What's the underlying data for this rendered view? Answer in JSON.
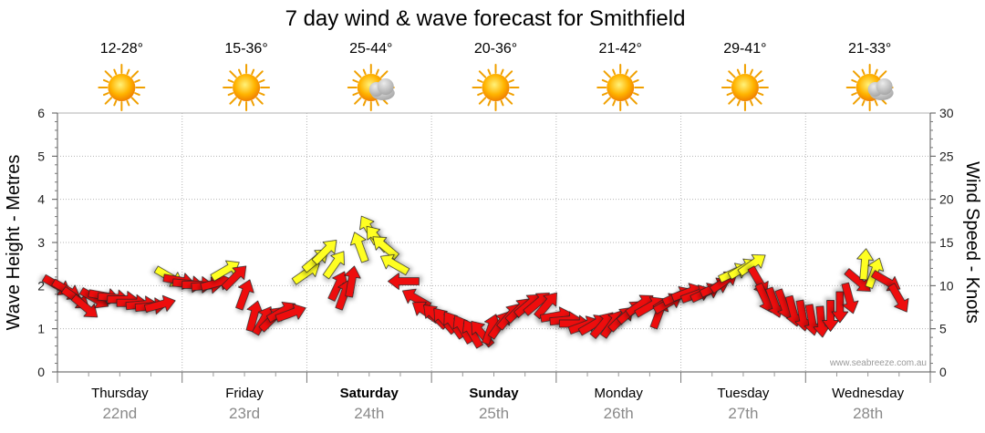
{
  "chart_data": {
    "type": "line",
    "title": "7 day wind & wave forecast for Smithfield",
    "ylabel_left": "Wave Height - Metres",
    "ylabel_right": "Wind Speed - Knots",
    "ylim_left": [
      0,
      6
    ],
    "ylim_right": [
      0,
      30
    ],
    "yticks_left": [
      "0",
      "1",
      "2",
      "3",
      "4",
      "5",
      "6"
    ],
    "yticks_right": [
      "0",
      "5",
      "10",
      "15",
      "20",
      "25",
      "30"
    ],
    "credit": "www.seabreeze.com.au",
    "days": [
      {
        "name": "Thursday",
        "date": "22nd",
        "temp": "12-28°",
        "icon": "sun-icon",
        "bold": false
      },
      {
        "name": "Friday",
        "date": "23rd",
        "temp": "15-36°",
        "icon": "sun-icon",
        "bold": false
      },
      {
        "name": "Saturday",
        "date": "24th",
        "temp": "25-44°",
        "icon": "sun-cloud-icon",
        "bold": true
      },
      {
        "name": "Sunday",
        "date": "25th",
        "temp": "20-36°",
        "icon": "sun-icon",
        "bold": true
      },
      {
        "name": "Monday",
        "date": "26th",
        "temp": "21-42°",
        "icon": "sun-icon",
        "bold": false
      },
      {
        "name": "Tuesday",
        "date": "27th",
        "temp": "29-41°",
        "icon": "sun-icon",
        "bold": false
      },
      {
        "name": "Wednesday",
        "date": "28th",
        "temp": "21-33°",
        "icon": "sun-cloud-icon",
        "bold": false
      }
    ],
    "series": [
      {
        "name": "Wind Speed - Knots",
        "axis": "right",
        "colors": {
          "strong": "#ee1111",
          "moderate": "#ffff22"
        },
        "points": [
          {
            "t": 0.0,
            "v": 10.0,
            "dir": 300,
            "c": "strong"
          },
          {
            "t": 0.15,
            "v": 9.5,
            "dir": 300,
            "c": "strong"
          },
          {
            "t": 0.3,
            "v": 8.5,
            "dir": 305,
            "c": "strong"
          },
          {
            "t": 0.45,
            "v": 7.5,
            "dir": 310,
            "c": "strong"
          },
          {
            "t": 0.6,
            "v": 8.5,
            "dir": 300,
            "c": "strong"
          },
          {
            "t": 0.75,
            "v": 8.8,
            "dir": 280,
            "c": "strong"
          },
          {
            "t": 0.9,
            "v": 8.6,
            "dir": 275,
            "c": "strong"
          },
          {
            "t": 1.05,
            "v": 8.4,
            "dir": 270,
            "c": "strong"
          },
          {
            "t": 1.2,
            "v": 8.0,
            "dir": 270,
            "c": "strong"
          },
          {
            "t": 1.35,
            "v": 7.8,
            "dir": 265,
            "c": "strong"
          },
          {
            "t": 1.5,
            "v": 7.6,
            "dir": 265,
            "c": "strong"
          },
          {
            "t": 1.65,
            "v": 7.8,
            "dir": 255,
            "c": "strong"
          },
          {
            "t": 1.8,
            "v": 11.0,
            "dir": 300,
            "c": "moderate"
          },
          {
            "t": 1.95,
            "v": 10.6,
            "dir": 280,
            "c": "strong"
          },
          {
            "t": 2.1,
            "v": 10.2,
            "dir": 275,
            "c": "strong"
          },
          {
            "t": 2.25,
            "v": 10.1,
            "dir": 270,
            "c": "strong"
          },
          {
            "t": 2.4,
            "v": 10.0,
            "dir": 265,
            "c": "strong"
          },
          {
            "t": 2.55,
            "v": 10.3,
            "dir": 255,
            "c": "strong"
          },
          {
            "t": 2.7,
            "v": 11.8,
            "dir": 240,
            "c": "moderate"
          },
          {
            "t": 2.85,
            "v": 11.0,
            "dir": 225,
            "c": "strong"
          },
          {
            "t": 3.0,
            "v": 9.0,
            "dir": 200,
            "c": "strong"
          },
          {
            "t": 3.15,
            "v": 6.5,
            "dir": 195,
            "c": "strong"
          },
          {
            "t": 3.3,
            "v": 6.0,
            "dir": 210,
            "c": "strong"
          },
          {
            "t": 3.45,
            "v": 6.2,
            "dir": 225,
            "c": "strong"
          },
          {
            "t": 3.6,
            "v": 7.0,
            "dir": 240,
            "c": "strong"
          },
          {
            "t": 3.75,
            "v": 6.8,
            "dir": 250,
            "c": "strong"
          },
          {
            "t": 4.0,
            "v": 11.5,
            "dir": 235,
            "c": "moderate"
          },
          {
            "t": 4.15,
            "v": 13.0,
            "dir": 230,
            "c": "moderate"
          },
          {
            "t": 4.3,
            "v": 14.0,
            "dir": 225,
            "c": "moderate"
          },
          {
            "t": 4.45,
            "v": 12.5,
            "dir": 215,
            "c": "moderate"
          },
          {
            "t": 4.5,
            "v": 10.0,
            "dir": 205,
            "c": "strong"
          },
          {
            "t": 4.6,
            "v": 9.0,
            "dir": 200,
            "c": "strong"
          },
          {
            "t": 4.72,
            "v": 10.5,
            "dir": 190,
            "c": "strong"
          },
          {
            "t": 4.85,
            "v": 14.5,
            "dir": 160,
            "c": "moderate"
          },
          {
            "t": 5.0,
            "v": 16.5,
            "dir": 150,
            "c": "moderate"
          },
          {
            "t": 5.12,
            "v": 15.5,
            "dir": 140,
            "c": "moderate"
          },
          {
            "t": 5.25,
            "v": 14.5,
            "dir": 130,
            "c": "moderate"
          },
          {
            "t": 5.4,
            "v": 12.5,
            "dir": 120,
            "c": "moderate"
          },
          {
            "t": 5.55,
            "v": 10.5,
            "dir": 90,
            "c": "strong"
          },
          {
            "t": 5.75,
            "v": 8.5,
            "dir": 120,
            "c": "strong"
          },
          {
            "t": 5.9,
            "v": 7.0,
            "dir": 125,
            "c": "strong"
          },
          {
            "t": 6.05,
            "v": 6.5,
            "dir": 135,
            "c": "strong"
          },
          {
            "t": 6.2,
            "v": 6.0,
            "dir": 140,
            "c": "strong"
          },
          {
            "t": 6.35,
            "v": 5.5,
            "dir": 145,
            "c": "strong"
          },
          {
            "t": 6.5,
            "v": 5.0,
            "dir": 150,
            "c": "strong"
          },
          {
            "t": 6.65,
            "v": 4.5,
            "dir": 150,
            "c": "strong"
          },
          {
            "t": 6.8,
            "v": 4.5,
            "dir": 140,
            "c": "strong"
          },
          {
            "t": 6.95,
            "v": 5.0,
            "dir": 200,
            "c": "strong"
          },
          {
            "t": 7.1,
            "v": 5.5,
            "dir": 215,
            "c": "strong"
          },
          {
            "t": 7.25,
            "v": 6.5,
            "dir": 220,
            "c": "strong"
          },
          {
            "t": 7.4,
            "v": 7.2,
            "dir": 225,
            "c": "strong"
          },
          {
            "t": 7.55,
            "v": 7.8,
            "dir": 230,
            "c": "strong"
          },
          {
            "t": 7.7,
            "v": 8.0,
            "dir": 230,
            "c": "strong"
          },
          {
            "t": 7.85,
            "v": 7.8,
            "dir": 220,
            "c": "strong"
          },
          {
            "t": 8.0,
            "v": 6.5,
            "dir": 260,
            "c": "strong"
          },
          {
            "t": 8.15,
            "v": 6.0,
            "dir": 265,
            "c": "strong"
          },
          {
            "t": 8.3,
            "v": 5.6,
            "dir": 270,
            "c": "strong"
          },
          {
            "t": 8.45,
            "v": 5.4,
            "dir": 250,
            "c": "strong"
          },
          {
            "t": 8.6,
            "v": 5.5,
            "dir": 240,
            "c": "strong"
          },
          {
            "t": 8.75,
            "v": 5.5,
            "dir": 220,
            "c": "strong"
          },
          {
            "t": 8.9,
            "v": 5.6,
            "dir": 215,
            "c": "strong"
          },
          {
            "t": 9.05,
            "v": 6.2,
            "dir": 225,
            "c": "strong"
          },
          {
            "t": 9.2,
            "v": 7.0,
            "dir": 230,
            "c": "strong"
          },
          {
            "t": 9.35,
            "v": 7.8,
            "dir": 235,
            "c": "strong"
          },
          {
            "t": 9.5,
            "v": 7.6,
            "dir": 240,
            "c": "strong"
          },
          {
            "t": 9.65,
            "v": 6.8,
            "dir": 200,
            "c": "strong"
          },
          {
            "t": 9.8,
            "v": 8.0,
            "dir": 240,
            "c": "strong"
          },
          {
            "t": 9.95,
            "v": 8.8,
            "dir": 245,
            "c": "strong"
          },
          {
            "t": 10.1,
            "v": 9.2,
            "dir": 250,
            "c": "strong"
          },
          {
            "t": 10.25,
            "v": 9.0,
            "dir": 250,
            "c": "strong"
          },
          {
            "t": 10.4,
            "v": 9.2,
            "dir": 245,
            "c": "strong"
          },
          {
            "t": 10.55,
            "v": 9.8,
            "dir": 245,
            "c": "strong"
          },
          {
            "t": 10.7,
            "v": 10.5,
            "dir": 235,
            "c": "strong"
          },
          {
            "t": 10.85,
            "v": 11.5,
            "dir": 245,
            "c": "moderate"
          },
          {
            "t": 11.0,
            "v": 12.0,
            "dir": 240,
            "c": "moderate"
          },
          {
            "t": 11.15,
            "v": 12.5,
            "dir": 235,
            "c": "moderate"
          },
          {
            "t": 11.25,
            "v": 10.5,
            "dir": 330,
            "c": "strong"
          },
          {
            "t": 11.35,
            "v": 8.5,
            "dir": 335,
            "c": "strong"
          },
          {
            "t": 11.5,
            "v": 8.0,
            "dir": 340,
            "c": "strong"
          },
          {
            "t": 11.65,
            "v": 7.8,
            "dir": 340,
            "c": "strong"
          },
          {
            "t": 11.8,
            "v": 7.0,
            "dir": 345,
            "c": "strong"
          },
          {
            "t": 11.95,
            "v": 6.5,
            "dir": 350,
            "c": "strong"
          },
          {
            "t": 12.1,
            "v": 6.0,
            "dir": 350,
            "c": "strong"
          },
          {
            "t": 12.25,
            "v": 5.8,
            "dir": 355,
            "c": "strong"
          },
          {
            "t": 12.4,
            "v": 6.5,
            "dir": 0,
            "c": "strong"
          },
          {
            "t": 12.55,
            "v": 7.5,
            "dir": 0,
            "c": "strong"
          },
          {
            "t": 12.7,
            "v": 8.5,
            "dir": 345,
            "c": "strong"
          },
          {
            "t": 12.85,
            "v": 10.5,
            "dir": 310,
            "c": "strong"
          },
          {
            "t": 12.95,
            "v": 12.5,
            "dir": 185,
            "c": "moderate"
          },
          {
            "t": 13.1,
            "v": 11.5,
            "dir": 200,
            "c": "moderate"
          },
          {
            "t": 13.3,
            "v": 10.5,
            "dir": 300,
            "c": "strong"
          },
          {
            "t": 13.5,
            "v": 8.5,
            "dir": 330,
            "c": "strong"
          }
        ]
      }
    ]
  }
}
